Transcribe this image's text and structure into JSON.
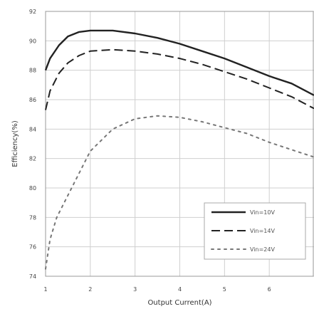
{
  "chart_data": {
    "type": "line",
    "title": "",
    "xlabel": "Output Current(A)",
    "ylabel": "Efficiency(%)",
    "xlim": [
      1,
      7
    ],
    "ylim": [
      74,
      92
    ],
    "xticks": [
      1,
      2,
      3,
      4,
      5,
      6
    ],
    "yticks": [
      74,
      76,
      78,
      80,
      82,
      84,
      86,
      88,
      90,
      92
    ],
    "xtick_labels": [
      "1",
      "2",
      "3",
      "4",
      "5",
      "6"
    ],
    "ytick_labels": [
      "74",
      "76",
      "78",
      "80",
      "82",
      "84",
      "86",
      "88",
      "90",
      "92"
    ],
    "grid": true,
    "legend_position": "bottom-right",
    "series": [
      {
        "name": "Vin=10V",
        "style": "solid",
        "color": "#222222",
        "x": [
          1.0,
          1.1,
          1.3,
          1.5,
          1.75,
          2.0,
          2.5,
          3.0,
          3.5,
          4.0,
          4.5,
          5.0,
          5.5,
          6.0,
          6.5,
          7.0
        ],
        "y": [
          88.0,
          88.8,
          89.7,
          90.3,
          90.6,
          90.7,
          90.7,
          90.5,
          90.2,
          89.8,
          89.3,
          88.8,
          88.2,
          87.6,
          87.1,
          86.3
        ]
      },
      {
        "name": "Vin=14V",
        "style": "dashed",
        "color": "#222222",
        "x": [
          1.0,
          1.1,
          1.3,
          1.5,
          1.75,
          2.0,
          2.5,
          3.0,
          3.5,
          4.0,
          4.5,
          5.0,
          5.5,
          6.0,
          6.5,
          7.0
        ],
        "y": [
          85.3,
          86.6,
          87.8,
          88.5,
          89.0,
          89.3,
          89.4,
          89.3,
          89.1,
          88.8,
          88.4,
          87.9,
          87.4,
          86.8,
          86.2,
          85.4
        ]
      },
      {
        "name": "Vin=24V",
        "style": "dotted",
        "color": "#777777",
        "x": [
          1.0,
          1.1,
          1.25,
          1.5,
          1.75,
          2.0,
          2.5,
          3.0,
          3.5,
          4.0,
          4.5,
          5.0,
          5.5,
          6.0,
          6.5,
          7.0
        ],
        "y": [
          74.5,
          76.5,
          78.0,
          79.5,
          81.0,
          82.5,
          84.0,
          84.7,
          84.9,
          84.8,
          84.5,
          84.1,
          83.7,
          83.1,
          82.6,
          82.1
        ]
      }
    ]
  }
}
